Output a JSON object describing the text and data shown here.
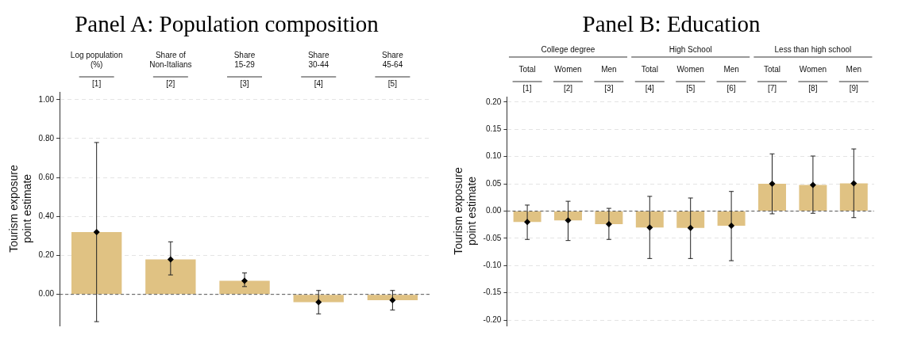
{
  "chart_data": [
    {
      "type": "bar",
      "title": "Panel A: Population composition",
      "ylabel": "Tourism exposure point estimate",
      "categories": [
        "Log population (%) [1]",
        "Share of Non-Italians [2]",
        "Share 15-29 [3]",
        "Share 30-44 [4]",
        "Share 45-64 [5]"
      ],
      "series": [
        {
          "color": "#e0c283",
          "values": [
            0.32,
            0.18,
            0.07,
            -0.04,
            -0.03
          ]
        },
        {
          "type": "scatter",
          "color": "#000000",
          "marker": "diamond",
          "x": [
            "Log population (%) [1]",
            "Share of Non-Italians [2]",
            "Share 15-29 [3]",
            "Share 30-44 [4]",
            "Share 45-64 [5]"
          ],
          "values": [
            0.32,
            0.18,
            0.07,
            -0.04,
            -0.03
          ],
          "errors": [
            [
              -0.14,
              0.78
            ],
            [
              0.1,
              0.27
            ],
            [
              0.04,
              0.11
            ],
            [
              -0.1,
              0.02
            ],
            [
              -0.08,
              0.02
            ]
          ]
        }
      ],
      "ylim": [
        -0.16,
        1.04
      ],
      "yticks": [
        {
          "value": 0,
          "label": "0.00"
        },
        {
          "value": 0.2,
          "label": "0.20"
        },
        {
          "value": 0.4,
          "label": "0.40"
        },
        {
          "value": 0.6,
          "label": "0.60"
        },
        {
          "value": 0.8,
          "label": "0.80"
        },
        {
          "value": 1,
          "label": "1.00"
        }
      ],
      "ref_lines": [
        {
          "axis": "y",
          "value": 0,
          "color": "#555555",
          "line_style": "dashed"
        }
      ],
      "grid": "y",
      "legend": false
    },
    {
      "type": "bar",
      "title": "Panel B: Education",
      "ylabel": "Tourism exposure point estimate",
      "annotations": [
        "College degree",
        "High School",
        "Less than high school"
      ],
      "categories": [
        "Total [1]",
        "Women [2]",
        "Men [3]",
        "Total [4]",
        "Women [5]",
        "Men [6]",
        "Total [7]",
        "Women [8]",
        "Men [9]"
      ],
      "series": [
        {
          "color": "#e0c283",
          "values": [
            -0.02,
            -0.017,
            -0.024,
            -0.03,
            -0.031,
            -0.027,
            0.05,
            0.048,
            0.051
          ]
        },
        {
          "type": "scatter",
          "color": "#000000",
          "marker": "diamond",
          "x": [
            "Total [1]",
            "Women [2]",
            "Men [3]",
            "Total [4]",
            "Women [5]",
            "Men [6]",
            "Total [7]",
            "Women [8]",
            "Men [9]"
          ],
          "values": [
            -0.02,
            -0.017,
            -0.024,
            -0.03,
            -0.031,
            -0.027,
            0.05,
            0.048,
            0.051
          ],
          "errors": [
            [
              -0.052,
              0.011
            ],
            [
              -0.054,
              0.018
            ],
            [
              -0.052,
              0.005
            ],
            [
              -0.087,
              0.027
            ],
            [
              -0.087,
              0.024
            ],
            [
              -0.091,
              0.036
            ],
            [
              -0.005,
              0.105
            ],
            [
              -0.004,
              0.101
            ],
            [
              -0.012,
              0.114
            ]
          ]
        }
      ],
      "ylim": [
        -0.21,
        0.21
      ],
      "yticks": [
        {
          "value": -0.2,
          "label": "-0.20"
        },
        {
          "value": -0.15,
          "label": "-0.15"
        },
        {
          "value": -0.1,
          "label": "-0.10"
        },
        {
          "value": -0.05,
          "label": "-0.05"
        },
        {
          "value": 0,
          "label": "0.00"
        },
        {
          "value": 0.05,
          "label": "0.05"
        },
        {
          "value": 0.1,
          "label": "0.10"
        },
        {
          "value": 0.15,
          "label": "0.15"
        },
        {
          "value": 0.2,
          "label": "0.20"
        }
      ],
      "ref_lines": [
        {
          "axis": "y",
          "value": 0,
          "color": "#555555",
          "line_style": "dashed"
        }
      ],
      "grid": "y",
      "legend": false
    }
  ]
}
